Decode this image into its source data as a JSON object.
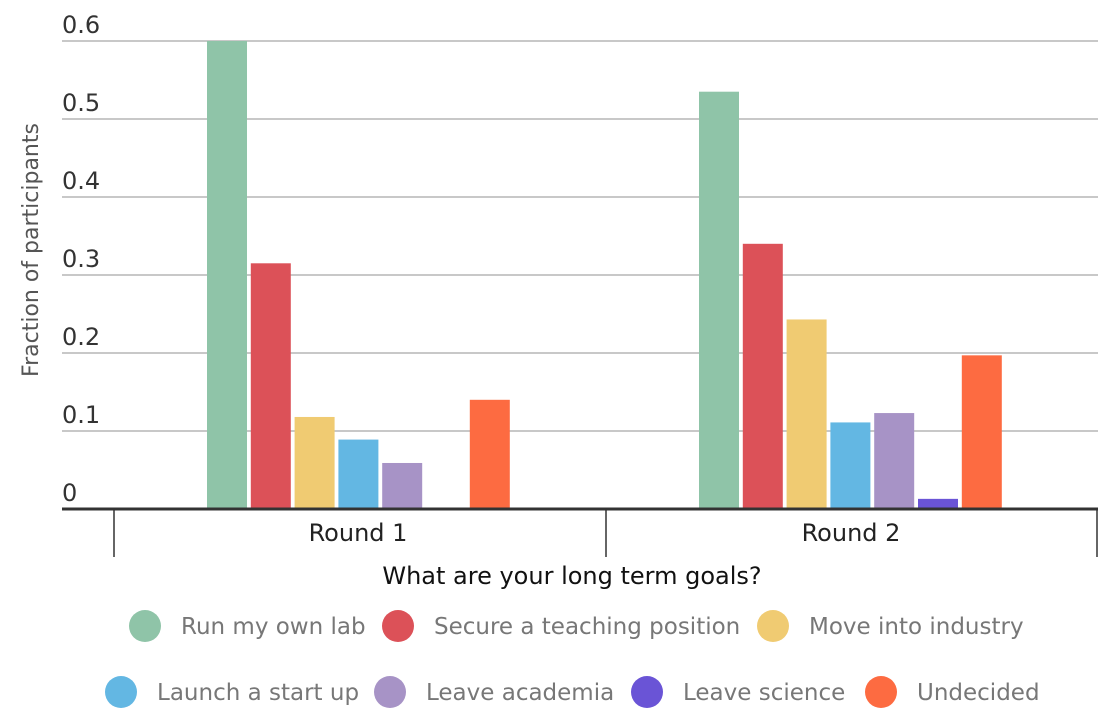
{
  "chart_data": {
    "type": "bar",
    "xlabel": "What are your long term goals?",
    "ylabel": "Fraction of participants",
    "ylim": [
      0,
      0.6
    ],
    "yticks": [
      0,
      0.1,
      0.2,
      0.3,
      0.4,
      0.5,
      0.6
    ],
    "ytick_labels": [
      "0",
      "0.1",
      "0.2",
      "0.3",
      "0.4",
      "0.5",
      "0.6"
    ],
    "categories": [
      "Round 1",
      "Round 2"
    ],
    "grid": true,
    "legend_position": "bottom",
    "series": [
      {
        "name": "Run my own lab",
        "color": "#8fc4a8",
        "values": [
          0.6,
          0.535
        ]
      },
      {
        "name": "Secure a teaching position",
        "color": "#dc5158",
        "values": [
          0.315,
          0.34
        ]
      },
      {
        "name": "Move into industry",
        "color": "#f0cb72",
        "values": [
          0.118,
          0.243
        ]
      },
      {
        "name": "Launch a start up",
        "color": "#63b7e3",
        "values": [
          0.089,
          0.111
        ]
      },
      {
        "name": "Leave academia",
        "color": "#a793c6",
        "values": [
          0.059,
          0.123
        ]
      },
      {
        "name": "Leave science",
        "color": "#6a54d6",
        "values": [
          0,
          0.013
        ]
      },
      {
        "name": "Undecided",
        "color": "#fd6b41",
        "values": [
          0.14,
          0.197
        ]
      }
    ]
  }
}
